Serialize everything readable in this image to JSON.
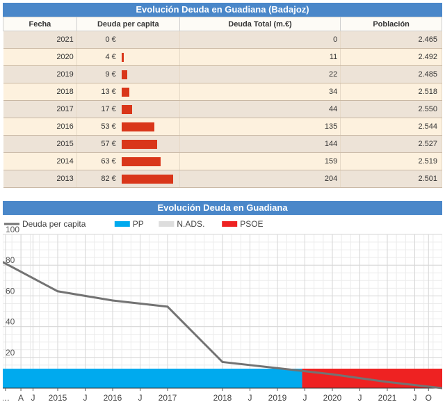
{
  "table": {
    "title": "Evolución Deuda en Guadiana (Badajoz)",
    "headers": [
      "Fecha",
      "Deuda per capita",
      "Deuda Total (m.€)",
      "Población"
    ],
    "rows": [
      {
        "year": "2021",
        "per_capita": "0 €",
        "per_capita_value": 0,
        "total": "0",
        "population": "2.465"
      },
      {
        "year": "2020",
        "per_capita": "4 €",
        "per_capita_value": 4,
        "total": "11",
        "population": "2.492"
      },
      {
        "year": "2019",
        "per_capita": "9 €",
        "per_capita_value": 9,
        "total": "22",
        "population": "2.485"
      },
      {
        "year": "2018",
        "per_capita": "13 €",
        "per_capita_value": 13,
        "total": "34",
        "population": "2.518"
      },
      {
        "year": "2017",
        "per_capita": "17 €",
        "per_capita_value": 17,
        "total": "44",
        "population": "2.550"
      },
      {
        "year": "2016",
        "per_capita": "53 €",
        "per_capita_value": 53,
        "total": "135",
        "population": "2.544"
      },
      {
        "year": "2015",
        "per_capita": "57 €",
        "per_capita_value": 57,
        "total": "144",
        "population": "2.527"
      },
      {
        "year": "2014",
        "per_capita": "63 €",
        "per_capita_value": 63,
        "total": "159",
        "population": "2.519"
      },
      {
        "year": "2013",
        "per_capita": "82 €",
        "per_capita_value": 82,
        "total": "204",
        "population": "2.501"
      }
    ]
  },
  "chart_data": {
    "type": "line",
    "title": "Evolución Deuda en Guadiana",
    "xlim": [
      2014.0,
      2022.0
    ],
    "ylim": [
      0,
      100
    ],
    "yticks": [
      20,
      40,
      60,
      80,
      100
    ],
    "xticks": [
      {
        "x": 2014.05,
        "label": "…"
      },
      {
        "x": 2014.33,
        "label": "A"
      },
      {
        "x": 2014.55,
        "label": "J"
      },
      {
        "x": 2015.0,
        "label": "2015"
      },
      {
        "x": 2015.5,
        "label": "J"
      },
      {
        "x": 2016.0,
        "label": "2016"
      },
      {
        "x": 2016.5,
        "label": "J"
      },
      {
        "x": 2017.0,
        "label": "2017"
      },
      {
        "x": 2018.0,
        "label": "2018"
      },
      {
        "x": 2018.5,
        "label": "J"
      },
      {
        "x": 2019.0,
        "label": "2019"
      },
      {
        "x": 2019.5,
        "label": "J"
      },
      {
        "x": 2020.0,
        "label": "2020"
      },
      {
        "x": 2020.5,
        "label": "J"
      },
      {
        "x": 2021.0,
        "label": "2021"
      },
      {
        "x": 2021.5,
        "label": "J"
      },
      {
        "x": 2021.75,
        "label": "O"
      }
    ],
    "grid": true,
    "legend_position": "top",
    "series": [
      {
        "name": "Deuda per capita",
        "color": "#737373",
        "x": [
          2014.0,
          2015.0,
          2016.0,
          2017.0,
          2018.0,
          2019.0,
          2020.0,
          2021.0,
          2022.0
        ],
        "y": [
          82,
          63,
          57,
          53,
          17,
          13,
          9,
          4,
          0
        ]
      }
    ],
    "party_bands": [
      {
        "name": "PP",
        "color": "#00aaee",
        "start": 2014.0,
        "end": 2019.55
      },
      {
        "name": "N.ADS.",
        "color": "#dddddd",
        "start": 2019.55,
        "end": 2019.45
      },
      {
        "name": "PSOE",
        "color": "#ee2222",
        "start": 2019.45,
        "end": 2022.0
      }
    ],
    "legend": [
      {
        "name": "Deuda per capita",
        "color": "#737373",
        "kind": "line"
      },
      {
        "name": "PP",
        "color": "#00aaee",
        "kind": "box"
      },
      {
        "name": "N.ADS.",
        "color": "#dddddd",
        "kind": "box"
      },
      {
        "name": "PSOE",
        "color": "#ee2222",
        "kind": "box"
      }
    ]
  }
}
